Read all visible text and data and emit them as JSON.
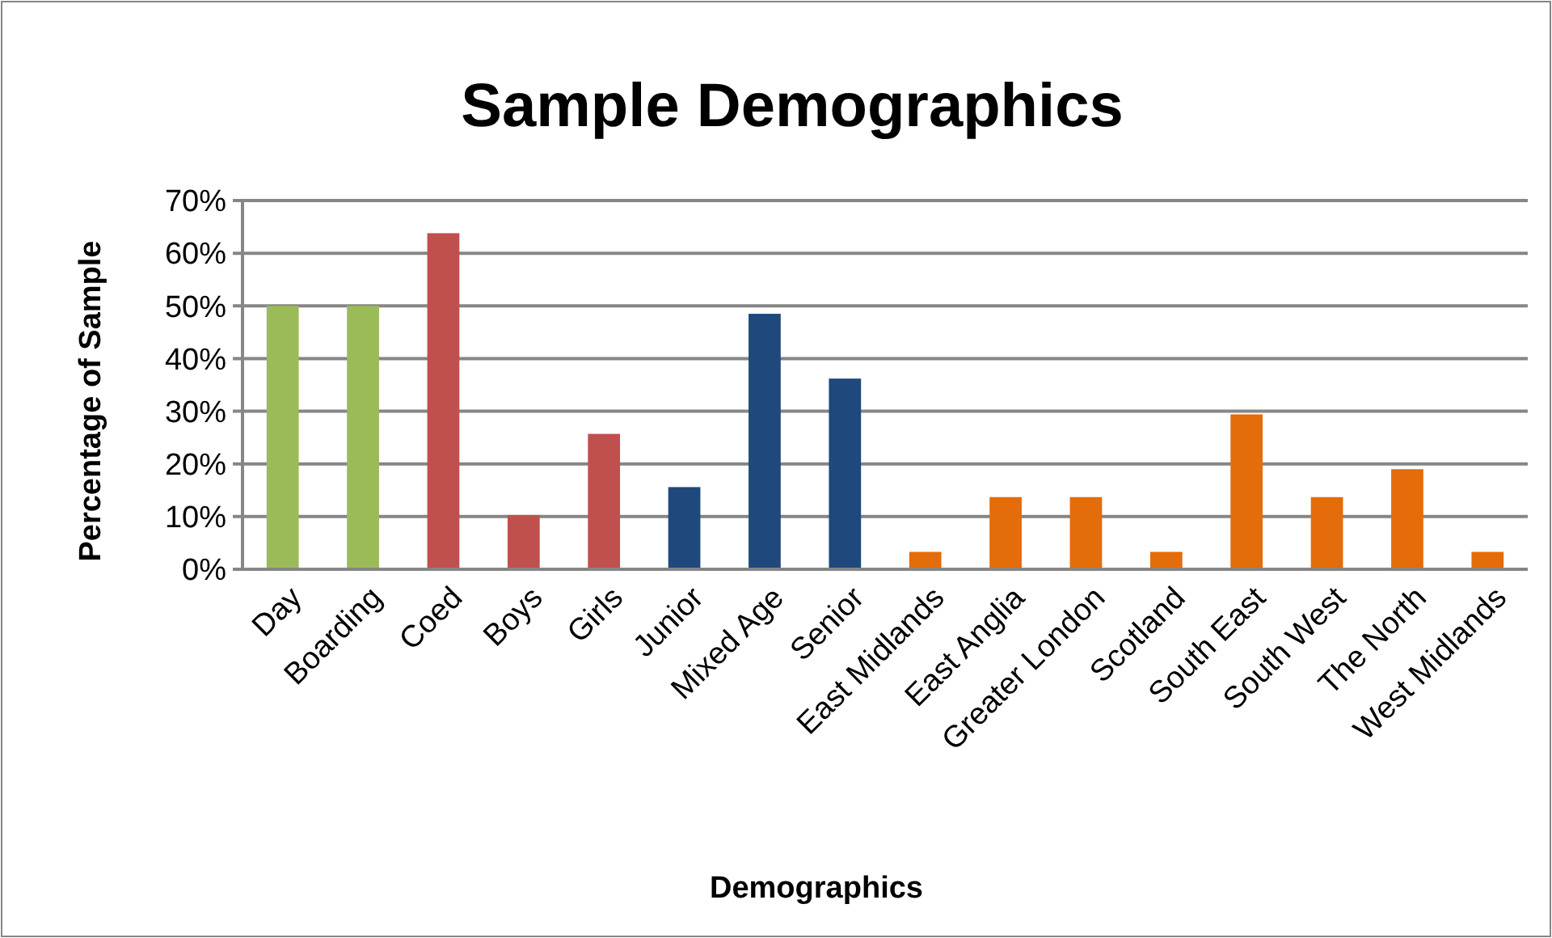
{
  "chart_data": {
    "type": "bar",
    "title": "Sample Demographics",
    "xlabel": "Demographics",
    "ylabel": "Percentage of Sample",
    "categories": [
      "Day",
      "Boarding",
      "Coed",
      "Boys",
      "Girls",
      "Junior",
      "Mixed Age",
      "Senior",
      "East Midlands",
      "East Anglia",
      "Greater London",
      "Scotland",
      "South East",
      "South West",
      "The North",
      "West Midlands"
    ],
    "values": [
      50,
      50,
      63.8,
      10.3,
      25.7,
      15.6,
      48.5,
      36.2,
      3.3,
      13.7,
      13.7,
      3.3,
      29.4,
      13.7,
      19,
      3.3
    ],
    "colors": [
      "#9bbb59",
      "#9bbb59",
      "#c0504d",
      "#c0504d",
      "#c0504d",
      "#1f497d",
      "#1f497d",
      "#1f497d",
      "#e46c0a",
      "#e46c0a",
      "#e46c0a",
      "#e46c0a",
      "#e46c0a",
      "#e46c0a",
      "#e46c0a",
      "#e46c0a"
    ],
    "ylim": [
      0,
      70
    ],
    "yticks": [
      {
        "value": 0,
        "label": "0%"
      },
      {
        "value": 10,
        "label": "10%"
      },
      {
        "value": 20,
        "label": "20%"
      },
      {
        "value": 30,
        "label": "30%"
      },
      {
        "value": 40,
        "label": "40%"
      },
      {
        "value": 50,
        "label": "50%"
      },
      {
        "value": 60,
        "label": "60%"
      },
      {
        "value": 70,
        "label": "70%"
      }
    ],
    "grid": "y"
  }
}
